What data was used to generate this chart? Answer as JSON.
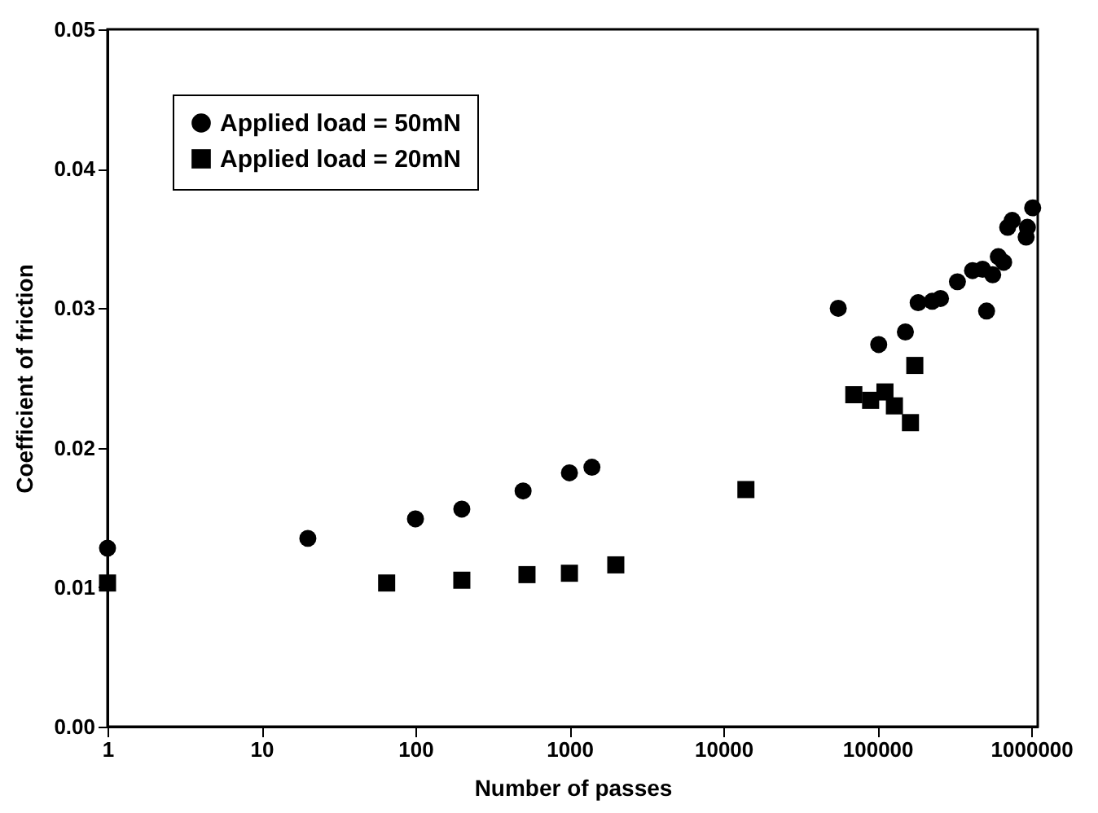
{
  "chart_data": {
    "type": "scatter",
    "xlabel": "Number of passes",
    "ylabel": "Coefficient of friction",
    "log": "x",
    "xlim": [
      1,
      1100000
    ],
    "ylim": [
      0,
      0.05
    ],
    "xticks": [
      1,
      10,
      100,
      1000,
      10000,
      100000,
      1000000
    ],
    "yticks": [
      {
        "value": 0,
        "label": "0.00"
      },
      {
        "value": 0.01,
        "label": "0.01"
      },
      {
        "value": 0.02,
        "label": "0.02"
      },
      {
        "value": 0.03,
        "label": "0.03"
      },
      {
        "value": 0.04,
        "label": "0.04"
      },
      {
        "value": 0.05,
        "label": "0.05"
      }
    ],
    "grid": false,
    "legend": "top left",
    "series": [
      {
        "name": "Applied load = 50mN",
        "color": "#000000",
        "marker": "circle",
        "x": [
          1,
          20,
          100,
          200,
          500,
          1000,
          1400,
          55700,
          102000,
          152000,
          184000,
          227000,
          257000,
          331000,
          415000,
          482000,
          512000,
          561000,
          610000,
          661000,
          702000,
          751000,
          865000,
          942000,
          925000,
          1020000
        ],
        "values": [
          0.0128,
          0.0135,
          0.0149,
          0.0156,
          0.0169,
          0.0182,
          0.0186,
          0.03,
          0.0274,
          0.0283,
          0.0304,
          0.0305,
          0.0307,
          0.0319,
          0.0327,
          0.0328,
          0.0298,
          0.0324,
          0.0337,
          0.0333,
          0.0358,
          0.0363,
          null,
          0.0358,
          0.0351,
          0.0372
        ]
      },
      {
        "name": "Applied load = 20mN",
        "color": "#000000",
        "marker": "square",
        "x": [
          1,
          65,
          200,
          530,
          1000,
          2000,
          14000,
          70300,
          90400,
          112000,
          129000,
          175000,
          164000
        ],
        "values": [
          0.0103,
          0.0103,
          0.0105,
          0.0109,
          0.011,
          0.0116,
          0.017,
          0.0238,
          0.0234,
          0.024,
          0.023,
          0.0259,
          0.0218
        ]
      }
    ]
  }
}
